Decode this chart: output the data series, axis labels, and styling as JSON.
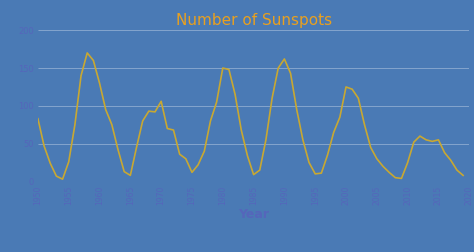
{
  "title": "Number of Sunspots",
  "xlabel": "Year",
  "background_color": "#4a7ab5",
  "line_color": "#c8a832",
  "title_color": "#e8a020",
  "tick_label_color": "#5566bb",
  "xlabel_color": "#5566bb",
  "xlim": [
    1950,
    2020
  ],
  "ylim": [
    0,
    200
  ],
  "yticks": [
    0,
    50,
    100,
    150,
    200
  ],
  "xticks": [
    1950,
    1955,
    1960,
    1965,
    1970,
    1975,
    1980,
    1985,
    1990,
    1995,
    2000,
    2005,
    2010,
    2015,
    2020
  ],
  "years": [
    1950,
    1951,
    1952,
    1953,
    1954,
    1955,
    1956,
    1957,
    1958,
    1959,
    1960,
    1961,
    1962,
    1963,
    1964,
    1965,
    1966,
    1967,
    1968,
    1969,
    1970,
    1971,
    1972,
    1973,
    1974,
    1975,
    1976,
    1977,
    1978,
    1979,
    1980,
    1981,
    1982,
    1983,
    1984,
    1985,
    1986,
    1987,
    1988,
    1989,
    1990,
    1991,
    1992,
    1993,
    1994,
    1995,
    1996,
    1997,
    1998,
    1999,
    2000,
    2001,
    2002,
    2003,
    2004,
    2005,
    2006,
    2007,
    2008,
    2009,
    2010,
    2011,
    2012,
    2013,
    2014,
    2015,
    2016,
    2017,
    2018,
    2019
  ],
  "sunspots": [
    83,
    47,
    24,
    7,
    3,
    26,
    75,
    140,
    170,
    160,
    130,
    95,
    75,
    42,
    13,
    8,
    45,
    80,
    93,
    92,
    106,
    70,
    68,
    36,
    30,
    12,
    22,
    40,
    80,
    105,
    150,
    148,
    115,
    68,
    34,
    9,
    15,
    55,
    110,
    150,
    162,
    143,
    95,
    55,
    25,
    10,
    11,
    35,
    65,
    85,
    125,
    122,
    110,
    75,
    45,
    30,
    20,
    12,
    5,
    4,
    25,
    52,
    60,
    55,
    53,
    55,
    38,
    28,
    15,
    8
  ]
}
